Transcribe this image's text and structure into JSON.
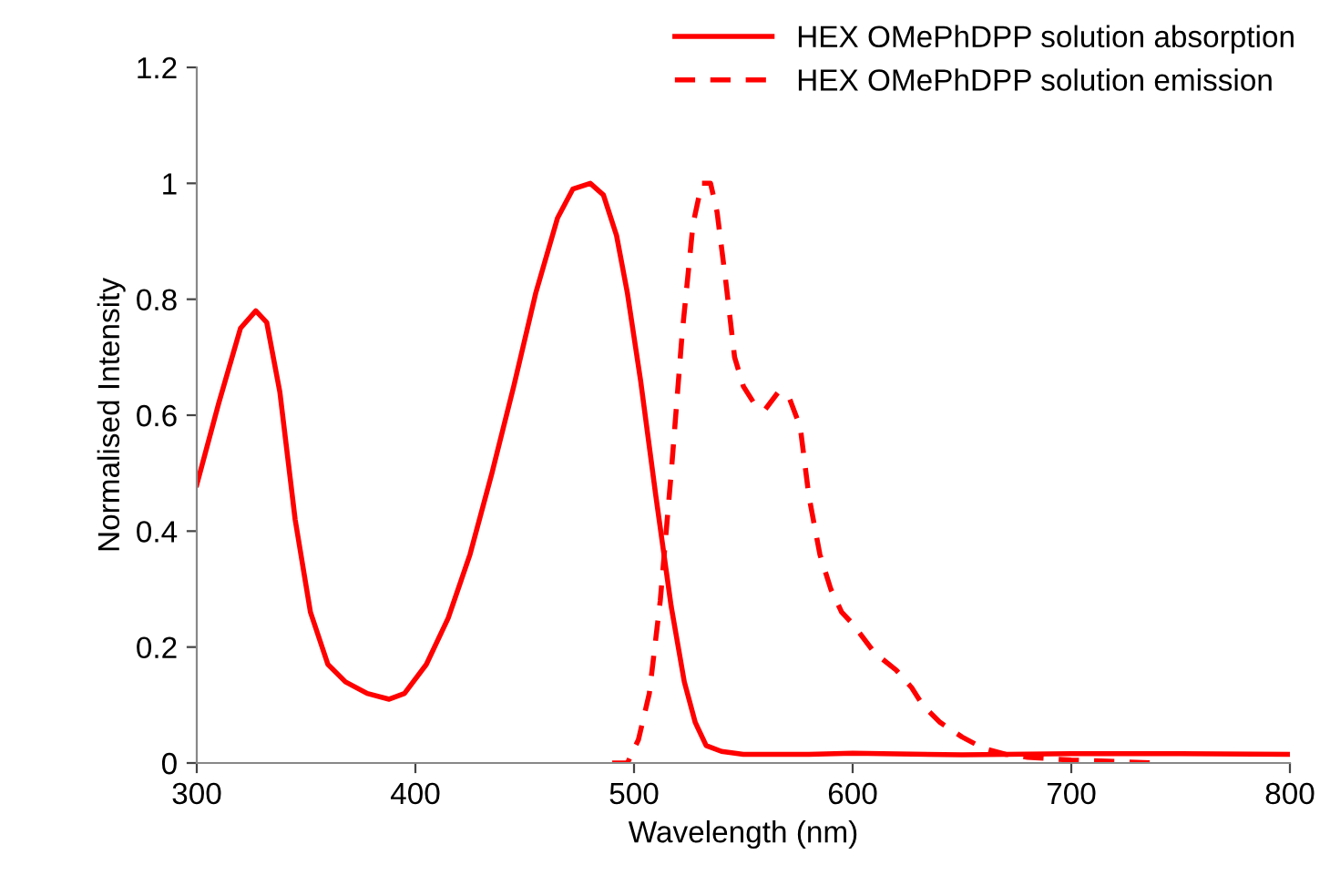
{
  "chart_data": {
    "type": "line",
    "xlabel": "Wavelength (nm)",
    "ylabel": "Normalised Intensity",
    "xlim": [
      300,
      800
    ],
    "xticks": [
      300,
      400,
      500,
      600,
      700,
      800
    ],
    "ylim": [
      0,
      1.2
    ],
    "yticks": [
      0,
      0.2,
      0.4,
      0.6,
      0.8,
      1,
      1.2
    ],
    "grid": false,
    "legend": "top right",
    "marker": "none",
    "series": [
      {
        "name": "HEX OMePhDPP solution absorption",
        "color": "#ff0000",
        "line_style": "solid",
        "x": [
          300,
          310,
          320,
          327,
          332,
          338,
          345,
          352,
          360,
          368,
          378,
          388,
          395,
          405,
          415,
          425,
          435,
          445,
          455,
          465,
          472,
          480,
          486,
          492,
          497,
          503,
          510,
          517,
          523,
          528,
          533,
          540,
          550,
          580,
          600,
          650,
          700,
          750,
          800
        ],
        "values": [
          0.48,
          0.62,
          0.75,
          0.78,
          0.76,
          0.64,
          0.42,
          0.26,
          0.17,
          0.14,
          0.12,
          0.11,
          0.12,
          0.17,
          0.25,
          0.36,
          0.5,
          0.65,
          0.81,
          0.94,
          0.99,
          1.0,
          0.98,
          0.91,
          0.81,
          0.66,
          0.46,
          0.27,
          0.14,
          0.07,
          0.03,
          0.02,
          0.015,
          0.015,
          0.017,
          0.014,
          0.016,
          0.016,
          0.015
        ]
      },
      {
        "name": "HEX OMePhDPP solution emission",
        "color": "#ff0000",
        "line_style": "dashed",
        "x": [
          490,
          497,
          502,
          507,
          512,
          517,
          522,
          527,
          531,
          535,
          538,
          542,
          546,
          550,
          555,
          560,
          566,
          571,
          576,
          580,
          585,
          590,
          595,
          600,
          610,
          620,
          627,
          632,
          640,
          650,
          660,
          670,
          680,
          700,
          740
        ],
        "values": [
          0,
          0,
          0.04,
          0.12,
          0.28,
          0.5,
          0.74,
          0.93,
          1.0,
          1.0,
          0.95,
          0.83,
          0.7,
          0.65,
          0.62,
          0.61,
          0.64,
          0.63,
          0.58,
          0.46,
          0.36,
          0.3,
          0.26,
          0.24,
          0.19,
          0.16,
          0.13,
          0.1,
          0.07,
          0.045,
          0.025,
          0.015,
          0.01,
          0.005,
          0
        ]
      }
    ]
  }
}
